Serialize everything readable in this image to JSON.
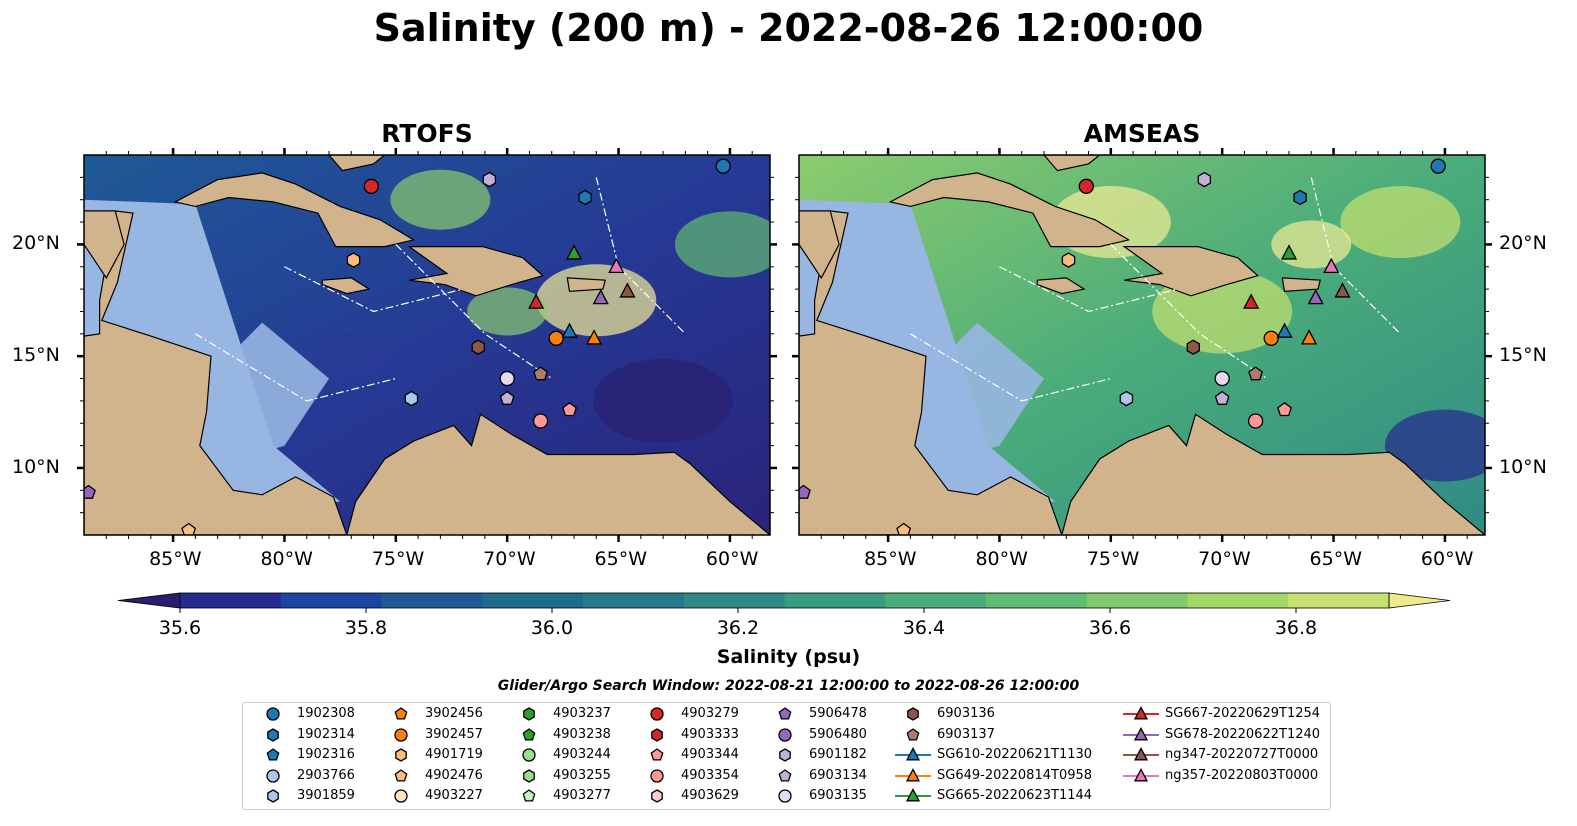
{
  "title": "Salinity (200 m) - 2022-08-26 12:00:00",
  "panels": [
    {
      "title": "RTOFS"
    },
    {
      "title": "AMSEAS"
    }
  ],
  "axes": {
    "lon_ticks": [
      "85°W",
      "80°W",
      "75°W",
      "70°W",
      "65°W",
      "60°W"
    ],
    "lat_ticks": [
      "20°N",
      "15°N",
      "10°N"
    ]
  },
  "colorbar": {
    "label": "Salinity (psu)",
    "ticks": [
      "35.6",
      "35.8",
      "36.0",
      "36.2",
      "36.4",
      "36.6",
      "36.8"
    ],
    "colors": [
      "#2c1e6e",
      "#26298f",
      "#1d44a0",
      "#1d5a96",
      "#1f6b8c",
      "#277a89",
      "#2f8a85",
      "#399b80",
      "#4aac7a",
      "#62bb72",
      "#82c96b",
      "#a4d567",
      "#c7e170",
      "#f0ea8e"
    ]
  },
  "legend": {
    "title": "Glider/Argo Search Window: 2022-08-21 12:00:00 to 2022-08-26 12:00:00",
    "columns": [
      [
        {
          "label": "1902308",
          "marker": "circle",
          "color": "#1f77b4"
        },
        {
          "label": "1902314",
          "marker": "hexagon",
          "color": "#1f77b4"
        },
        {
          "label": "1902316",
          "marker": "pentagon",
          "color": "#1f77b4"
        },
        {
          "label": "2903766",
          "marker": "circle",
          "color": "#aec7e8"
        },
        {
          "label": "3901859",
          "marker": "hexagon",
          "color": "#aec7e8"
        }
      ],
      [
        {
          "label": "3902456",
          "marker": "pentagon",
          "color": "#ff7f0e"
        },
        {
          "label": "3902457",
          "marker": "circle",
          "color": "#ff7f0e"
        },
        {
          "label": "4901719",
          "marker": "hexagon",
          "color": "#ffbb78"
        },
        {
          "label": "4902476",
          "marker": "pentagon",
          "color": "#ffbb78"
        },
        {
          "label": "4903227",
          "marker": "circle",
          "color": "#ffe4c4"
        }
      ],
      [
        {
          "label": "4903237",
          "marker": "hexagon",
          "color": "#2ca02c"
        },
        {
          "label": "4903238",
          "marker": "pentagon",
          "color": "#2ca02c"
        },
        {
          "label": "4903244",
          "marker": "circle",
          "color": "#98df8a"
        },
        {
          "label": "4903255",
          "marker": "hexagon",
          "color": "#98df8a"
        },
        {
          "label": "4903277",
          "marker": "pentagon",
          "color": "#c7f0c0"
        }
      ],
      [
        {
          "label": "4903279",
          "marker": "circle",
          "color": "#d62728"
        },
        {
          "label": "4903333",
          "marker": "hexagon",
          "color": "#d62728"
        },
        {
          "label": "4903344",
          "marker": "pentagon",
          "color": "#ff9896"
        },
        {
          "label": "4903354",
          "marker": "circle",
          "color": "#ff9896"
        },
        {
          "label": "4903629",
          "marker": "hexagon",
          "color": "#ffd0cf"
        }
      ],
      [
        {
          "label": "5906478",
          "marker": "pentagon",
          "color": "#9467bd"
        },
        {
          "label": "5906480",
          "marker": "circle",
          "color": "#9467bd"
        },
        {
          "label": "6901182",
          "marker": "hexagon",
          "color": "#c5b0d5"
        },
        {
          "label": "6903134",
          "marker": "pentagon",
          "color": "#c5b0d5"
        },
        {
          "label": "6903135",
          "marker": "circle",
          "color": "#e6d9f0"
        }
      ],
      [
        {
          "label": "6903136",
          "marker": "hexagon",
          "color": "#8c564b"
        },
        {
          "label": "6903137",
          "marker": "pentagon",
          "color": "#b07a6e"
        },
        {
          "label": "SG610-20220621T1130",
          "marker": "triangle",
          "color": "#1f77b4"
        },
        {
          "label": "SG649-20220814T0958",
          "marker": "triangle",
          "color": "#ff7f0e"
        },
        {
          "label": "SG665-20220623T1144",
          "marker": "triangle",
          "color": "#2ca02c"
        }
      ],
      [
        {
          "label": "SG667-20220629T1254",
          "marker": "triangle",
          "color": "#d62728"
        },
        {
          "label": "SG678-20220622T1240",
          "marker": "triangle",
          "color": "#9467bd"
        },
        {
          "label": "ng347-20220727T0000",
          "marker": "triangle",
          "color": "#8c564b"
        },
        {
          "label": "ng357-20220803T0000",
          "marker": "triangle",
          "color": "#e377c2"
        }
      ]
    ]
  },
  "map_colors": {
    "land": "#d2b48c",
    "shelf": "#97b6e1",
    "frame": "#000000"
  },
  "markers_on_map": [
    {
      "id": "1902308",
      "marker": "circle",
      "color": "#1f77b4",
      "lon": -60.3,
      "lat": 23.5
    },
    {
      "id": "1902314",
      "marker": "hexagon",
      "color": "#1f77b4",
      "lon": -66.5,
      "lat": 22.1
    },
    {
      "id": "3901859",
      "marker": "hexagon",
      "color": "#aec7e8",
      "lon": -74.3,
      "lat": 13.1
    },
    {
      "id": "3902457",
      "marker": "circle",
      "color": "#ff7f0e",
      "lon": -67.8,
      "lat": 15.8
    },
    {
      "id": "4901719",
      "marker": "hexagon",
      "color": "#ffbb78",
      "lon": -76.9,
      "lat": 19.3
    },
    {
      "id": "4902476",
      "marker": "pentagon",
      "color": "#ffbb78",
      "lon": -84.3,
      "lat": 7.2
    },
    {
      "id": "4903279",
      "marker": "circle",
      "color": "#d62728",
      "lon": -76.1,
      "lat": 22.6
    },
    {
      "id": "4903344",
      "marker": "pentagon",
      "color": "#ff9896",
      "lon": -67.2,
      "lat": 12.6
    },
    {
      "id": "4903354",
      "marker": "circle",
      "color": "#ff9896",
      "lon": -68.5,
      "lat": 12.1
    },
    {
      "id": "5906478",
      "marker": "pentagon",
      "color": "#9467bd",
      "lon": -88.8,
      "lat": 8.9
    },
    {
      "id": "6901182",
      "marker": "hexagon",
      "color": "#c5b0d5",
      "lon": -70.8,
      "lat": 22.9
    },
    {
      "id": "6903134",
      "marker": "pentagon",
      "color": "#c5b0d5",
      "lon": -70.0,
      "lat": 13.1
    },
    {
      "id": "6903135",
      "marker": "circle",
      "color": "#e6d9f0",
      "lon": -70.0,
      "lat": 14.0
    },
    {
      "id": "6903136",
      "marker": "hexagon",
      "color": "#8c564b",
      "lon": -71.3,
      "lat": 15.4
    },
    {
      "id": "6903137",
      "marker": "pentagon",
      "color": "#b07a6e",
      "lon": -68.5,
      "lat": 14.2
    },
    {
      "id": "SG610-20220621T1130",
      "marker": "triangle",
      "color": "#1f77b4",
      "lon": -67.2,
      "lat": 16.1
    },
    {
      "id": "SG649-20220814T0958",
      "marker": "triangle",
      "color": "#ff7f0e",
      "lon": -66.1,
      "lat": 15.8
    },
    {
      "id": "SG665-20220623T1144",
      "marker": "triangle",
      "color": "#2ca02c",
      "lon": -67.0,
      "lat": 19.6
    },
    {
      "id": "SG667-20220629T1254",
      "marker": "triangle",
      "color": "#d62728",
      "lon": -68.7,
      "lat": 17.4
    },
    {
      "id": "SG678-20220622T1240",
      "marker": "triangle",
      "color": "#9467bd",
      "lon": -65.8,
      "lat": 17.6
    },
    {
      "id": "ng347-20220727T0000",
      "marker": "triangle",
      "color": "#8c564b",
      "lon": -64.6,
      "lat": 17.9
    },
    {
      "id": "ng357-20220803T0000",
      "marker": "triangle",
      "color": "#e377c2",
      "lon": -65.1,
      "lat": 19.0
    }
  ]
}
